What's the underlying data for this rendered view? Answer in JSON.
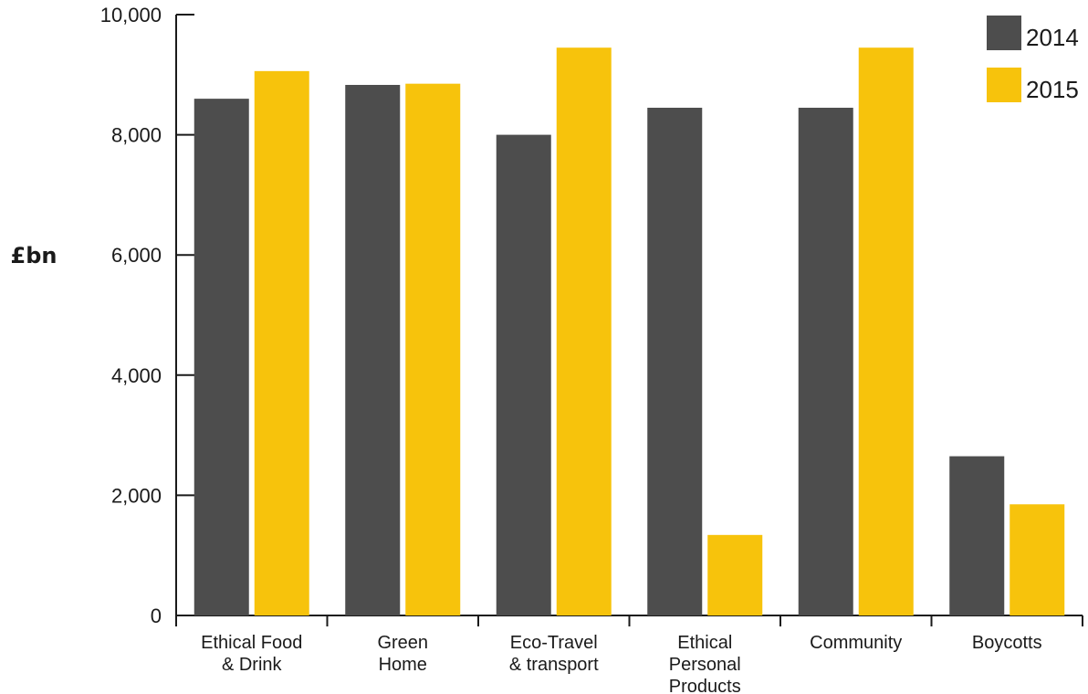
{
  "chart_data": {
    "type": "bar",
    "title": "",
    "xlabel": "",
    "ylabel": "£bn",
    "ylim": [
      0,
      10000
    ],
    "yticks": [
      0,
      2000,
      4000,
      6000,
      8000,
      10000
    ],
    "ytick_labels": [
      "0",
      "2,000",
      "4,000",
      "6,000",
      "8,000",
      "10,000"
    ],
    "grid": false,
    "legend_position": "top-right",
    "categories": [
      [
        "Ethical Food",
        "& Drink"
      ],
      [
        "Green",
        "Home"
      ],
      [
        "Eco-Travel",
        "& transport"
      ],
      [
        "Ethical",
        "Personal",
        "Products"
      ],
      [
        "Community"
      ],
      [
        "Boycotts"
      ]
    ],
    "series": [
      {
        "name": "2014",
        "color": "#4d4d4d",
        "values": [
          8600,
          8830,
          8000,
          8450,
          8450,
          2650
        ]
      },
      {
        "name": "2015",
        "color": "#f7c30c",
        "values": [
          9060,
          8850,
          9450,
          1340,
          9450,
          1850
        ]
      }
    ]
  }
}
